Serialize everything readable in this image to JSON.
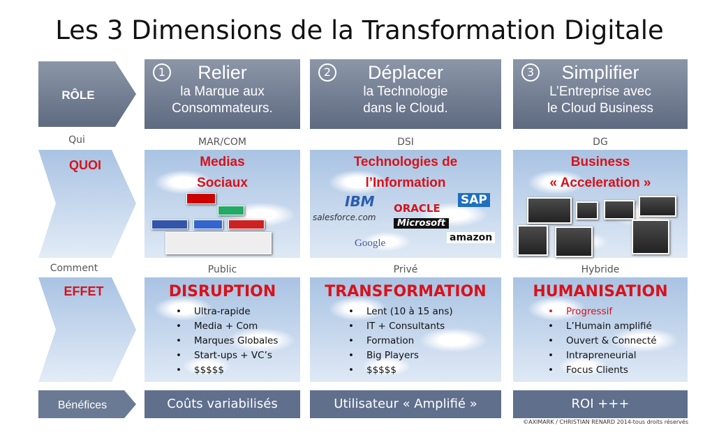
{
  "title": "Les 3 Dimensions de la Transformation Digitale",
  "rows": {
    "role": "RÔLE",
    "qui": "Qui",
    "quoi": "QUOI",
    "comment": "Comment",
    "effet": "EFFET",
    "benefices": "Bénéfices"
  },
  "columns": [
    {
      "number": "1",
      "title": "Relier",
      "subtitle": [
        "la Marque aux",
        "Consommateurs."
      ],
      "qui": "MAR/COM",
      "quoi": [
        "Medias",
        "Sociaux"
      ],
      "comment": "Public",
      "effet": "DISRUPTION",
      "bullets": [
        "Ultra-rapide",
        "Media + Com",
        "Marques Globales",
        "Start-ups + VC’s",
        "$$$$$"
      ],
      "benefice": "Coûts variabilisés"
    },
    {
      "number": "2",
      "title": "Déplacer",
      "subtitle": [
        "la Technologie",
        "dans le Cloud."
      ],
      "qui": "DSI",
      "quoi": [
        "Technologies de",
        "l’Information"
      ],
      "comment": "Privé",
      "effet": "TRANSFORMATION",
      "bullets": [
        "Lent (10 à 15 ans)",
        "IT + Consultants",
        "Formation",
        "Big Players",
        "$$$$$"
      ],
      "logos": [
        "IBM",
        "ORACLE",
        "SAP",
        "salesforce.com",
        "Microsoft",
        "Google",
        "amazon"
      ],
      "benefice": "Utilisateur « Amplifié »"
    },
    {
      "number": "3",
      "title": "Simplifier",
      "subtitle": [
        "L’Entreprise avec",
        "le  Cloud Business"
      ],
      "qui": "DG",
      "quoi": [
        "Business",
        "« Acceleration »"
      ],
      "comment": "Hybride",
      "effet": "HUMANISATION",
      "bullets": [
        "Progressif",
        "L’Humain amplifié",
        "Ouvert & Connecté",
        "Intrapreneurial",
        "Focus Clients"
      ],
      "benefice": "ROI +++"
    }
  ],
  "copyright": "©AXIMARK / CHRISTIAN RENARD 2014-tous droits réservés"
}
